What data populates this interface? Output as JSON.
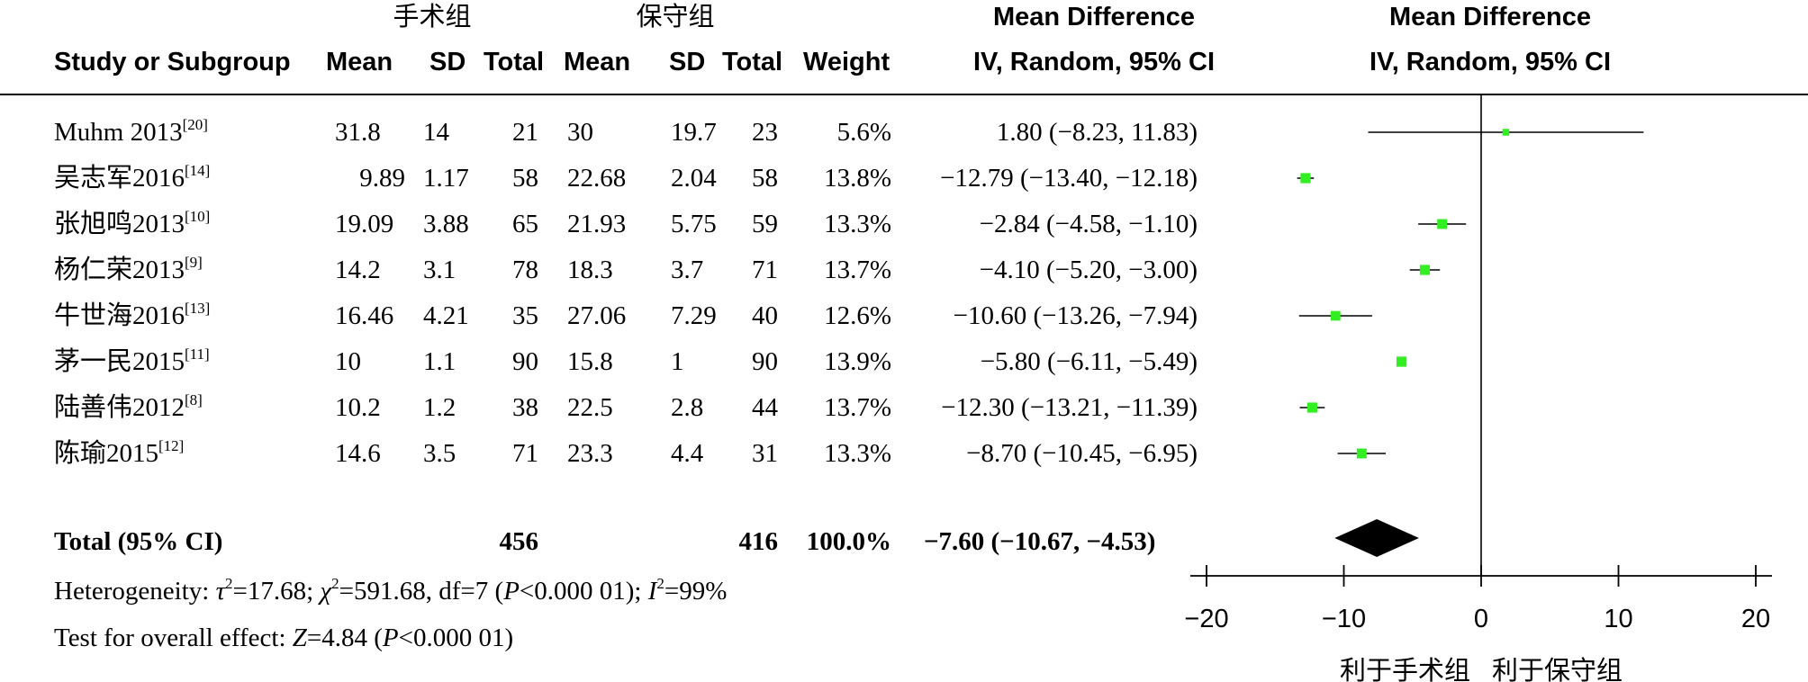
{
  "headers": {
    "group1": "手术组",
    "group2": "保守组",
    "study": "Study or Subgroup",
    "mean": "Mean",
    "sd": "SD",
    "total": "Total",
    "weight": "Weight",
    "md_title": "Mean Difference",
    "md_method": "IV, Random, 95% CI",
    "plot_title": "Mean Difference",
    "plot_method": "IV, Random, 95% CI"
  },
  "studies": [
    {
      "name": "Muhm 2013",
      "ref": "[20]",
      "m1": "31.8",
      "sd1": "14",
      "n1": "21",
      "m2": "30",
      "sd2": "19.7",
      "n2": "23",
      "weight": "5.6%",
      "ci_text": "1.80 (−8.23, 11.83)"
    },
    {
      "name": "吴志军2016",
      "ref": "[14]",
      "m1": "9.89",
      "sd1": "1.17",
      "n1": "58",
      "m2": "22.68",
      "sd2": "2.04",
      "n2": "58",
      "weight": "13.8%",
      "ci_text": "−12.79 (−13.40, −12.18)"
    },
    {
      "name": "张旭鸣2013",
      "ref": "[10]",
      "m1": "19.09",
      "sd1": "3.88",
      "n1": "65",
      "m2": "21.93",
      "sd2": "5.75",
      "n2": "59",
      "weight": "13.3%",
      "ci_text": "−2.84 (−4.58, −1.10)"
    },
    {
      "name": "杨仁荣2013",
      "ref": "[9]",
      "m1": "14.2",
      "sd1": "3.1",
      "n1": "78",
      "m2": "18.3",
      "sd2": "3.7",
      "n2": "71",
      "weight": "13.7%",
      "ci_text": "−4.10 (−5.20, −3.00)"
    },
    {
      "name": "牛世海2016",
      "ref": "[13]",
      "m1": "16.46",
      "sd1": "4.21",
      "n1": "35",
      "m2": "27.06",
      "sd2": "7.29",
      "n2": "40",
      "weight": "12.6%",
      "ci_text": "−10.60 (−13.26, −7.94)"
    },
    {
      "name": "茅一民2015",
      "ref": "[11]",
      "m1": "10",
      "sd1": "1.1",
      "n1": "90",
      "m2": "15.8",
      "sd2": "1",
      "n2": "90",
      "weight": "13.9%",
      "ci_text": "−5.80 (−6.11, −5.49)"
    },
    {
      "name": "陆善伟2012",
      "ref": "[8]",
      "m1": "10.2",
      "sd1": "1.2",
      "n1": "38",
      "m2": "22.5",
      "sd2": "2.8",
      "n2": "44",
      "weight": "13.7%",
      "ci_text": "−12.30 (−13.21, −11.39)"
    },
    {
      "name": "陈瑜2015",
      "ref": "[12]",
      "m1": "14.6",
      "sd1": "3.5",
      "n1": "71",
      "m2": "23.3",
      "sd2": "4.4",
      "n2": "31",
      "weight": "13.3%",
      "ci_text": "−8.70 (−10.45, −6.95)"
    }
  ],
  "total": {
    "label": "Total (95% CI)",
    "n1": "456",
    "n2": "416",
    "weight": "100.0%",
    "ci_text": "−7.60 (−10.67, −4.53)"
  },
  "heterogeneity": {
    "prefix": "Heterogeneity: ",
    "tau_sym": "τ",
    "tau_text": "=17.68; ",
    "chi_sym": "χ",
    "chi_text": "=591.68, df=7 (",
    "p_sym": "P",
    "p_text": "<0.000 01); ",
    "i_sym": "I",
    "i_text": "=99%",
    "sq": "2"
  },
  "overall": {
    "prefix": "Test for overall effect: ",
    "z_sym": "Z",
    "z_text": "=4.84 (",
    "p_sym": "P",
    "p_text": "<0.000 01)"
  },
  "chart_data": {
    "type": "forest",
    "title": "Mean Difference",
    "subtitle": "IV, Random, 95% CI",
    "xlim": [
      -20,
      20
    ],
    "x_ticks": [
      -20,
      -10,
      0,
      10,
      20
    ],
    "favours_left": "利于手术组",
    "favours_right": "利于保守组",
    "marker_color": "#33ee22",
    "diamond_color": "#000000",
    "studies": [
      {
        "name": "Muhm 2013",
        "md": 1.8,
        "lo": -8.23,
        "hi": 11.83,
        "weight": 5.6
      },
      {
        "name": "吴志军2016",
        "md": -12.79,
        "lo": -13.4,
        "hi": -12.18,
        "weight": 13.8
      },
      {
        "name": "张旭鸣2013",
        "md": -2.84,
        "lo": -4.58,
        "hi": -1.1,
        "weight": 13.3
      },
      {
        "name": "杨仁荣2013",
        "md": -4.1,
        "lo": -5.2,
        "hi": -3.0,
        "weight": 13.7
      },
      {
        "name": "牛世海2016",
        "md": -10.6,
        "lo": -13.26,
        "hi": -7.94,
        "weight": 12.6
      },
      {
        "name": "茅一民2015",
        "md": -5.8,
        "lo": -6.11,
        "hi": -5.49,
        "weight": 13.9
      },
      {
        "name": "陆善伟2012",
        "md": -12.3,
        "lo": -13.21,
        "hi": -11.39,
        "weight": 13.7
      },
      {
        "name": "陈瑜2015",
        "md": -8.7,
        "lo": -10.45,
        "hi": -6.95,
        "weight": 13.3
      }
    ],
    "total": {
      "md": -7.6,
      "lo": -10.67,
      "hi": -4.53
    }
  }
}
